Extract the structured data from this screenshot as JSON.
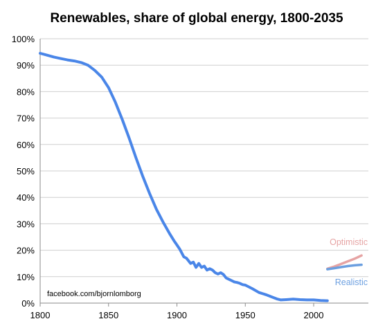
{
  "chart_data": {
    "type": "line",
    "title": "Renewables, share of global energy, 1800-2035",
    "xlabel": "",
    "ylabel": "",
    "xlim": [
      1800,
      2040
    ],
    "ylim": [
      0,
      100
    ],
    "x_ticks": [
      1800,
      1850,
      1900,
      1950,
      2000
    ],
    "y_ticks": [
      0,
      10,
      20,
      30,
      40,
      50,
      60,
      70,
      80,
      90,
      100
    ],
    "y_tick_labels": [
      "0%",
      "10%",
      "20%",
      "30%",
      "40%",
      "50%",
      "60%",
      "70%",
      "80%",
      "90%",
      "100%"
    ],
    "grid": "horizontal",
    "annotation": "facebook.com/bjornlomborg",
    "series": [
      {
        "name": "",
        "color": "#4a86e8",
        "x": [
          1800,
          1805,
          1810,
          1815,
          1820,
          1825,
          1830,
          1835,
          1840,
          1845,
          1850,
          1855,
          1860,
          1865,
          1870,
          1875,
          1880,
          1885,
          1890,
          1895,
          1898,
          1900,
          1902,
          1905,
          1907,
          1910,
          1912,
          1914,
          1916,
          1918,
          1920,
          1922,
          1924,
          1926,
          1928,
          1930,
          1932,
          1934,
          1936,
          1938,
          1940,
          1942,
          1944,
          1946,
          1948,
          1950,
          1955,
          1960,
          1965,
          1970,
          1973,
          1976,
          1980,
          1985,
          1990,
          1995,
          2000,
          2005,
          2010
        ],
        "y": [
          94.5,
          93.8,
          93.1,
          92.5,
          92.0,
          91.6,
          91.0,
          90.0,
          88.0,
          85.5,
          81.5,
          76.0,
          69.5,
          62.5,
          55.0,
          48.0,
          41.5,
          35.5,
          30.5,
          26.0,
          23.5,
          22.0,
          20.5,
          17.5,
          17.0,
          15.0,
          15.5,
          13.5,
          15.0,
          13.5,
          14.0,
          12.5,
          13.0,
          12.5,
          11.5,
          11.0,
          11.5,
          10.8,
          9.5,
          9.0,
          8.5,
          8.0,
          7.8,
          7.5,
          7.0,
          6.8,
          5.5,
          4.0,
          3.2,
          2.2,
          1.6,
          1.2,
          1.3,
          1.5,
          1.3,
          1.2,
          1.2,
          1.0,
          0.9
        ]
      },
      {
        "name": "Optimistic",
        "color": "#e6a3a3",
        "x": [
          2010,
          2015,
          2020,
          2025,
          2030,
          2035
        ],
        "y": [
          13.0,
          13.8,
          14.8,
          15.8,
          16.8,
          18.0
        ]
      },
      {
        "name": "Realistic",
        "color": "#6b9fe0",
        "x": [
          2010,
          2015,
          2020,
          2025,
          2030,
          2035
        ],
        "y": [
          12.8,
          13.2,
          13.6,
          14.0,
          14.3,
          14.5
        ]
      }
    ]
  }
}
